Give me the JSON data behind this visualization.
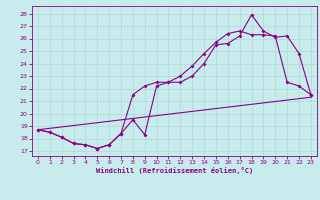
{
  "title": "",
  "xlabel": "Windchill (Refroidissement éolien,°C)",
  "ylabel": "",
  "bg_color": "#c8ecec",
  "grid_color": "#b0d8d8",
  "line_color": "#880088",
  "x_ticks": [
    0,
    1,
    2,
    3,
    4,
    5,
    6,
    7,
    8,
    9,
    10,
    11,
    12,
    13,
    14,
    15,
    16,
    17,
    18,
    19,
    20,
    21,
    22,
    23
  ],
  "y_ticks": [
    17,
    18,
    19,
    20,
    21,
    22,
    23,
    24,
    25,
    26,
    27,
    28
  ],
  "xlim": [
    -0.5,
    23.5
  ],
  "ylim": [
    16.6,
    28.6
  ],
  "line1_x": [
    0,
    1,
    2,
    3,
    4,
    5,
    6,
    7,
    8,
    9,
    10,
    11,
    12,
    13,
    14,
    15,
    16,
    17,
    18,
    19,
    20,
    21,
    22,
    23
  ],
  "line1_y": [
    18.7,
    18.5,
    18.1,
    17.6,
    17.5,
    17.2,
    17.5,
    18.4,
    19.5,
    18.3,
    22.2,
    22.5,
    22.5,
    23.0,
    24.0,
    25.5,
    25.6,
    26.2,
    27.9,
    26.6,
    26.1,
    26.2,
    24.8,
    21.5
  ],
  "line2_x": [
    0,
    1,
    2,
    3,
    4,
    5,
    6,
    7,
    8,
    9,
    10,
    11,
    12,
    13,
    14,
    15,
    16,
    17,
    18,
    19,
    20,
    21,
    22,
    23
  ],
  "line2_y": [
    18.7,
    18.5,
    18.1,
    17.6,
    17.5,
    17.2,
    17.5,
    18.4,
    21.5,
    22.2,
    22.5,
    22.5,
    23.0,
    23.8,
    24.8,
    25.7,
    26.4,
    26.6,
    26.3,
    26.3,
    26.2,
    22.5,
    22.2,
    21.5
  ],
  "line3_x": [
    0,
    23
  ],
  "line3_y": [
    18.7,
    21.3
  ]
}
